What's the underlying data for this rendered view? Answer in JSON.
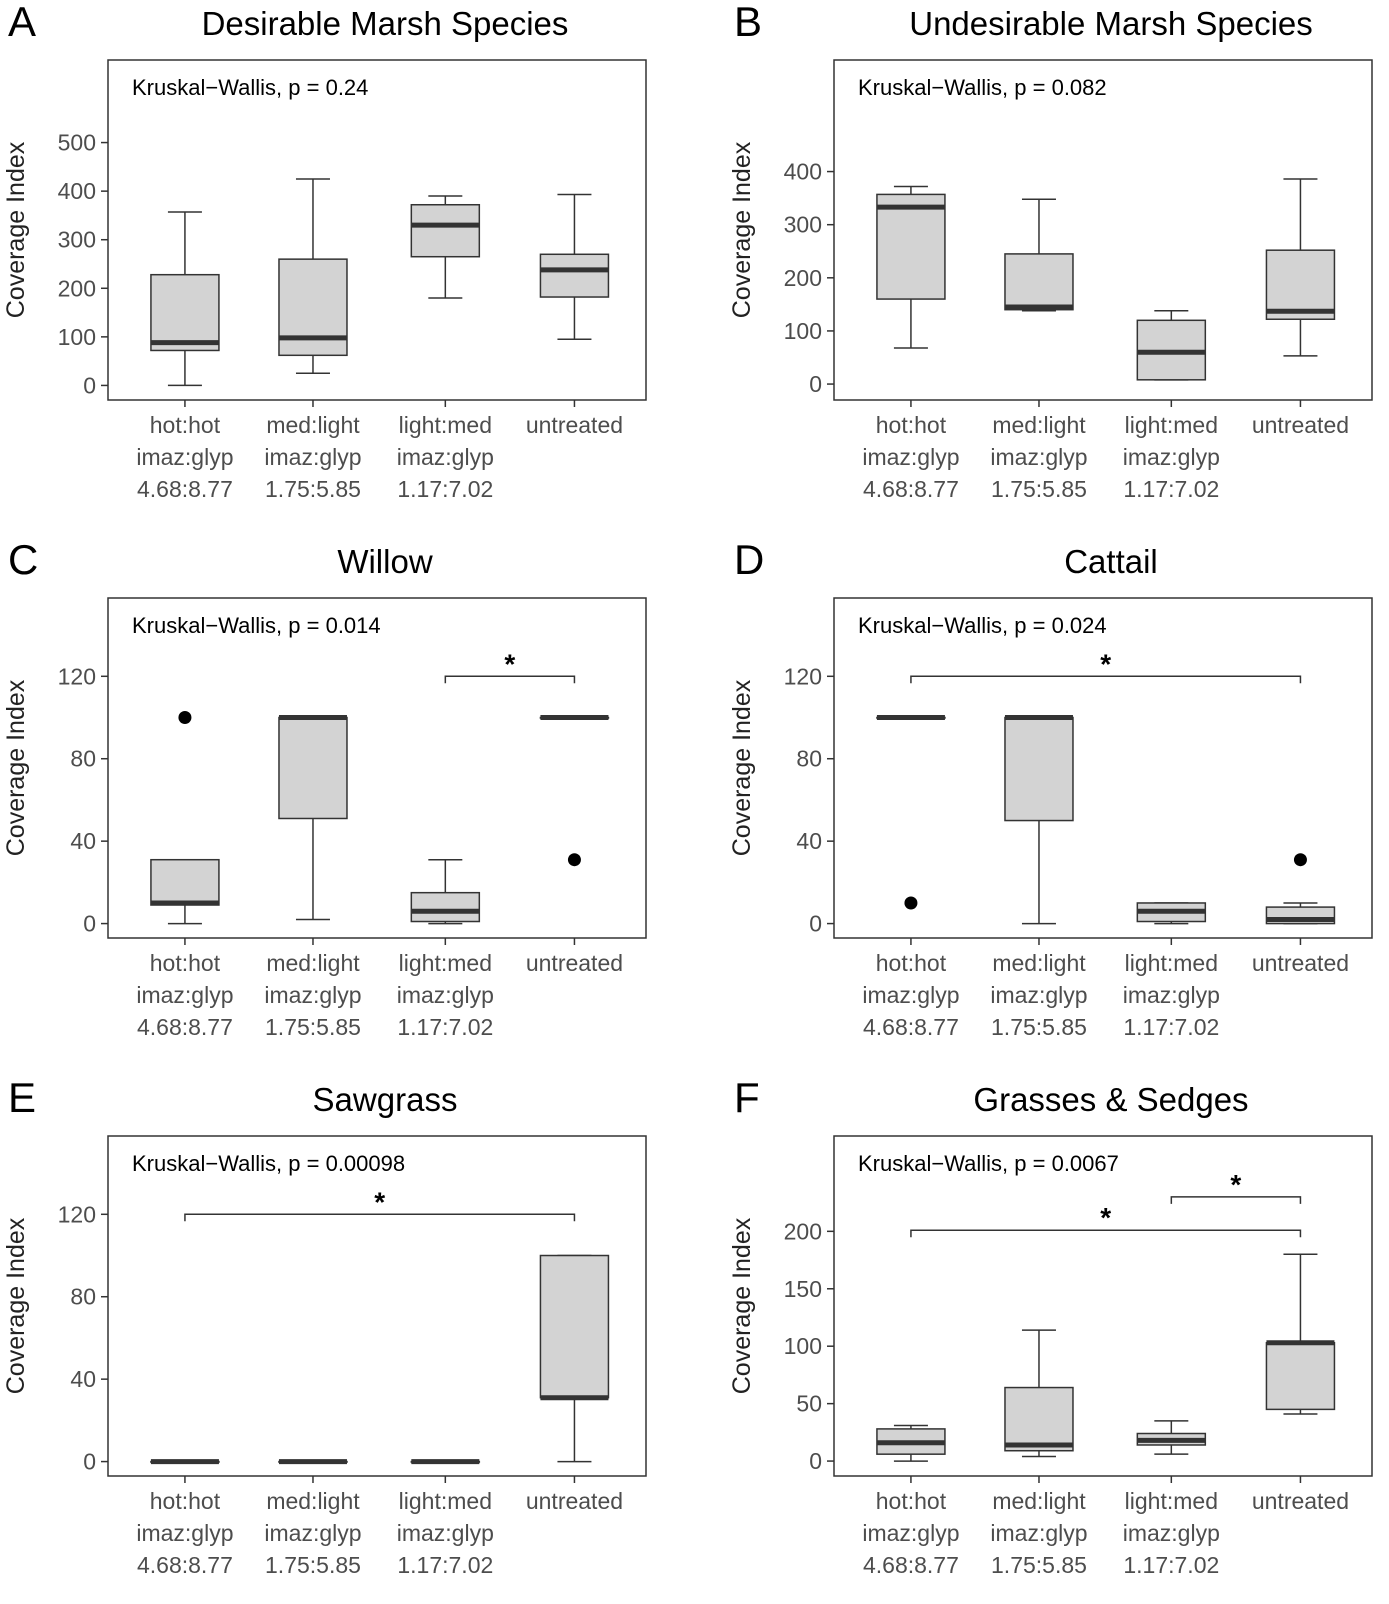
{
  "chart_data": [
    {
      "type": "box",
      "panel": "A",
      "title": "Desirable Marsh Species",
      "ylabel": "Coverage Index",
      "stat_label": "Kruskal−Wallis, p = 0.24",
      "categories": [
        [
          "hot:hot",
          "imaz:glyp",
          "4.68:8.77"
        ],
        [
          "med:light",
          "imaz:glyp",
          "1.75:5.85"
        ],
        [
          "light:med",
          "imaz:glyp",
          "1.17:7.02"
        ],
        [
          "untreated"
        ]
      ],
      "ylim": [
        -30,
        670
      ],
      "yticks": [
        0,
        100,
        200,
        300,
        400,
        500
      ],
      "boxes": [
        {
          "min": 0,
          "q1": 72,
          "median": 88,
          "q3": 228,
          "max": 357,
          "outliers": []
        },
        {
          "min": 25,
          "q1": 62,
          "median": 98,
          "q3": 260,
          "max": 425,
          "outliers": []
        },
        {
          "min": 180,
          "q1": 265,
          "median": 330,
          "q3": 372,
          "max": 390,
          "outliers": []
        },
        {
          "min": 95,
          "q1": 182,
          "median": 238,
          "q3": 270,
          "max": 393,
          "outliers": []
        }
      ],
      "comparisons": []
    },
    {
      "type": "box",
      "panel": "B",
      "title": "Undesirable Marsh Species",
      "ylabel": "Coverage Index",
      "stat_label": "Kruskal−Wallis, p = 0.082",
      "categories": [
        [
          "hot:hot",
          "imaz:glyp",
          "4.68:8.77"
        ],
        [
          "med:light",
          "imaz:glyp",
          "1.75:5.85"
        ],
        [
          "light:med",
          "imaz:glyp",
          "1.17:7.02"
        ],
        [
          "untreated"
        ]
      ],
      "ylim": [
        -30,
        610
      ],
      "yticks": [
        0,
        100,
        200,
        300,
        400
      ],
      "boxes": [
        {
          "min": 68,
          "q1": 160,
          "median": 333,
          "q3": 357,
          "max": 372,
          "outliers": []
        },
        {
          "min": 138,
          "q1": 140,
          "median": 145,
          "q3": 245,
          "max": 348,
          "outliers": []
        },
        {
          "min": 8,
          "q1": 8,
          "median": 60,
          "q3": 120,
          "max": 138,
          "outliers": []
        },
        {
          "min": 53,
          "q1": 122,
          "median": 137,
          "q3": 252,
          "max": 386,
          "outliers": []
        }
      ],
      "comparisons": []
    },
    {
      "type": "box",
      "panel": "C",
      "title": "Willow",
      "ylabel": "Coverage Index",
      "stat_label": "Kruskal−Wallis, p = 0.014",
      "categories": [
        [
          "hot:hot",
          "imaz:glyp",
          "4.68:8.77"
        ],
        [
          "med:light",
          "imaz:glyp",
          "1.75:5.85"
        ],
        [
          "light:med",
          "imaz:glyp",
          "1.17:7.02"
        ],
        [
          "untreated"
        ]
      ],
      "ylim": [
        -7,
        158
      ],
      "yticks": [
        0,
        40,
        80,
        120
      ],
      "boxes": [
        {
          "min": 0,
          "q1": 9,
          "median": 10,
          "q3": 31,
          "max": 31,
          "outliers": [
            100
          ]
        },
        {
          "min": 2,
          "q1": 51,
          "median": 100,
          "q3": 100,
          "max": 100,
          "outliers": []
        },
        {
          "min": 0,
          "q1": 1,
          "median": 6,
          "q3": 15,
          "max": 31,
          "outliers": []
        },
        {
          "min": 100,
          "q1": 100,
          "median": 100,
          "q3": 100,
          "max": 100,
          "outliers": [
            31
          ]
        }
      ],
      "comparisons": [
        {
          "from": 2,
          "to": 3,
          "y": 120,
          "label": "*"
        }
      ]
    },
    {
      "type": "box",
      "panel": "D",
      "title": "Cattail",
      "ylabel": "Coverage Index",
      "stat_label": "Kruskal−Wallis, p = 0.024",
      "categories": [
        [
          "hot:hot",
          "imaz:glyp",
          "4.68:8.77"
        ],
        [
          "med:light",
          "imaz:glyp",
          "1.75:5.85"
        ],
        [
          "light:med",
          "imaz:glyp",
          "1.17:7.02"
        ],
        [
          "untreated"
        ]
      ],
      "ylim": [
        -7,
        158
      ],
      "yticks": [
        0,
        40,
        80,
        120
      ],
      "boxes": [
        {
          "min": 100,
          "q1": 100,
          "median": 100,
          "q3": 100,
          "max": 100,
          "outliers": [
            10
          ]
        },
        {
          "min": 0,
          "q1": 50,
          "median": 100,
          "q3": 100,
          "max": 100,
          "outliers": []
        },
        {
          "min": 0,
          "q1": 1,
          "median": 6,
          "q3": 10,
          "max": 10,
          "outliers": []
        },
        {
          "min": 0,
          "q1": 0,
          "median": 2,
          "q3": 8,
          "max": 10,
          "outliers": [
            31
          ]
        }
      ],
      "comparisons": [
        {
          "from": 0,
          "to": 3,
          "y": 120,
          "label": "*"
        }
      ]
    },
    {
      "type": "box",
      "panel": "E",
      "title": "Sawgrass",
      "ylabel": "Coverage Index",
      "stat_label": "Kruskal−Wallis, p = 0.00098",
      "categories": [
        [
          "hot:hot",
          "imaz:glyp",
          "4.68:8.77"
        ],
        [
          "med:light",
          "imaz:glyp",
          "1.75:5.85"
        ],
        [
          "light:med",
          "imaz:glyp",
          "1.17:7.02"
        ],
        [
          "untreated"
        ]
      ],
      "ylim": [
        -7,
        158
      ],
      "yticks": [
        0,
        40,
        80,
        120
      ],
      "boxes": [
        {
          "min": 0,
          "q1": 0,
          "median": 0,
          "q3": 0,
          "max": 0,
          "outliers": []
        },
        {
          "min": 0,
          "q1": 0,
          "median": 0,
          "q3": 0,
          "max": 0,
          "outliers": []
        },
        {
          "min": 0,
          "q1": 0,
          "median": 0,
          "q3": 0,
          "max": 0,
          "outliers": []
        },
        {
          "min": 0,
          "q1": 31,
          "median": 31,
          "q3": 100,
          "max": 100,
          "outliers": []
        }
      ],
      "comparisons": [
        {
          "from": 0,
          "to": 3,
          "y": 120,
          "label": "*"
        }
      ]
    },
    {
      "type": "box",
      "panel": "F",
      "title": "Grasses & Sedges",
      "ylabel": "Coverage Index",
      "stat_label": "Kruskal−Wallis, p = 0.0067",
      "categories": [
        [
          "hot:hot",
          "imaz:glyp",
          "4.68:8.77"
        ],
        [
          "med:light",
          "imaz:glyp",
          "1.75:5.85"
        ],
        [
          "light:med",
          "imaz:glyp",
          "1.17:7.02"
        ],
        [
          "untreated"
        ]
      ],
      "ylim": [
        -13,
        283
      ],
      "yticks": [
        0,
        50,
        100,
        150,
        200
      ],
      "boxes": [
        {
          "min": 0,
          "q1": 6,
          "median": 16,
          "q3": 28,
          "max": 31,
          "outliers": []
        },
        {
          "min": 4,
          "q1": 9,
          "median": 14,
          "q3": 64,
          "max": 114,
          "outliers": []
        },
        {
          "min": 6,
          "q1": 14,
          "median": 18,
          "q3": 24,
          "max": 35,
          "outliers": []
        },
        {
          "min": 41,
          "q1": 45,
          "median": 103,
          "q3": 103,
          "max": 180,
          "outliers": []
        }
      ],
      "comparisons": [
        {
          "from": 0,
          "to": 3,
          "y": 201,
          "label": "*"
        },
        {
          "from": 2,
          "to": 3,
          "y": 230,
          "label": "*"
        }
      ]
    }
  ]
}
